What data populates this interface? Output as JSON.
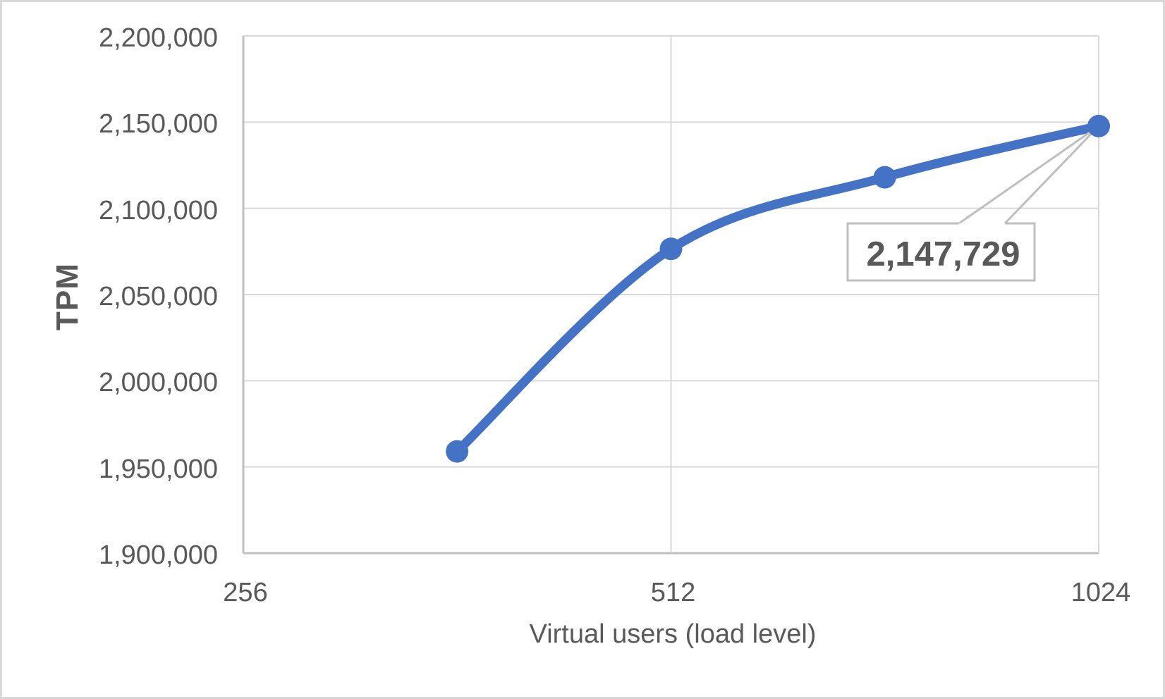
{
  "chart_data": {
    "type": "line",
    "title": "",
    "x_axis": {
      "title": "Virtual users (load level)",
      "scale": "log2",
      "min": 256,
      "max": 1024,
      "ticks": [
        {
          "value": 256,
          "label": "256"
        },
        {
          "value": 512,
          "label": "512"
        },
        {
          "value": 1024,
          "label": "1024"
        }
      ]
    },
    "y_axis": {
      "title": "TPM",
      "min": 1900000,
      "max": 2200000,
      "tick_step": 50000,
      "ticks": [
        {
          "value": 1900000,
          "label": "1,900,000"
        },
        {
          "value": 1950000,
          "label": "1,950,000"
        },
        {
          "value": 2000000,
          "label": "2,000,000"
        },
        {
          "value": 2050000,
          "label": "2,050,000"
        },
        {
          "value": 2100000,
          "label": "2,100,000"
        },
        {
          "value": 2150000,
          "label": "2,150,000"
        },
        {
          "value": 2200000,
          "label": "2,200,000"
        }
      ]
    },
    "series": [
      {
        "name": "TPM",
        "color": "#4472C4",
        "smooth": true,
        "line_width": 13,
        "marker_radius": 16,
        "points": [
          {
            "x": 362,
            "y": 1959000
          },
          {
            "x": 512,
            "y": 2076500
          },
          {
            "x": 724,
            "y": 2118000
          },
          {
            "x": 1024,
            "y": 2147729
          }
        ]
      }
    ],
    "data_label": {
      "text": "2,147,729",
      "point_index": 3
    },
    "layout": {
      "grid": true,
      "legend": "none"
    },
    "colors": {
      "gridline": "#d9d9d9",
      "axis_line": "#bfbfbf",
      "callout_border": "#bfbfbf",
      "callout_fill": "#ffffff",
      "text": "#595959",
      "frame_border": "#d9d9d9",
      "background": "#ffffff"
    }
  }
}
